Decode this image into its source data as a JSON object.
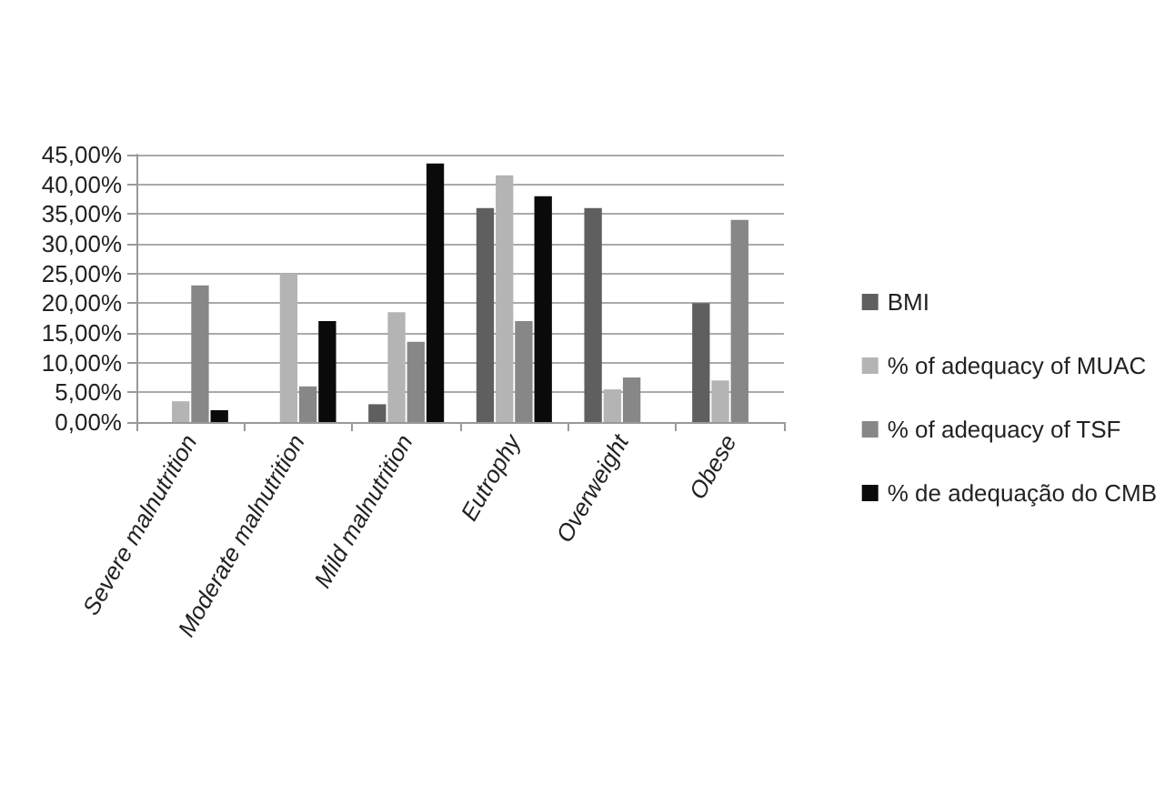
{
  "chart_data": {
    "type": "bar",
    "categories": [
      "Severe malnutrition",
      "Moderate malnutrition",
      "Mild malnutrition",
      "Eutrophy",
      "Overweight",
      "Obese"
    ],
    "series": [
      {
        "name": "BMI",
        "color": "#5f5f5f",
        "values": [
          0,
          0,
          3,
          36,
          36,
          20
        ]
      },
      {
        "name": "% of adequacy of MUAC",
        "color": "#b4b4b4",
        "values": [
          3.5,
          25,
          18.5,
          41.5,
          5.5,
          7
        ]
      },
      {
        "name": "% of adequacy of TSF",
        "color": "#878787",
        "values": [
          23,
          6,
          13.5,
          17,
          7.5,
          34
        ]
      },
      {
        "name": "% de adequação do CMB",
        "color": "#0a0a0a",
        "values": [
          2,
          17,
          43.5,
          38,
          0,
          0
        ]
      }
    ],
    "ylim": [
      0,
      45
    ],
    "yticks": [
      {
        "value": 0,
        "label": "0,00%"
      },
      {
        "value": 5,
        "label": "5,00%"
      },
      {
        "value": 10,
        "label": "10,00%"
      },
      {
        "value": 15,
        "label": "15,00%"
      },
      {
        "value": 20,
        "label": "20,00%"
      },
      {
        "value": 25,
        "label": "25,00%"
      },
      {
        "value": 30,
        "label": "30,00%"
      },
      {
        "value": 35,
        "label": "35,00%"
      },
      {
        "value": 40,
        "label": "40,00%"
      },
      {
        "value": 45,
        "label": "45,00%"
      }
    ],
    "grid": "y",
    "legend": "right"
  }
}
